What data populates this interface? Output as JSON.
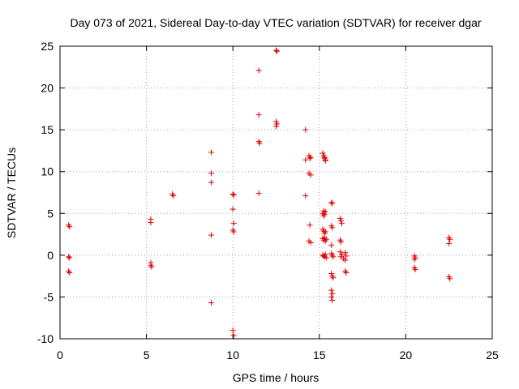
{
  "chart_data": {
    "type": "scatter",
    "title": "Day 073 of 2021, Sidereal Day-to-day VTEC variation (SDTVAR) for receiver dgar",
    "xlabel": "GPS time / hours",
    "ylabel": "SDTVAR / TECUs",
    "xlim": [
      0,
      25
    ],
    "ylim": [
      -10,
      25
    ],
    "xticks": [
      0,
      5,
      10,
      15,
      20,
      25
    ],
    "yticks": [
      -10,
      -5,
      0,
      5,
      10,
      15,
      20,
      25
    ],
    "grid": true,
    "marker": "plus",
    "color": "#e00000",
    "series": [
      {
        "name": "dgar",
        "points": [
          [
            0.5,
            3.6
          ],
          [
            0.55,
            3.4
          ],
          [
            0.5,
            -0.2
          ],
          [
            0.55,
            -0.3
          ],
          [
            0.5,
            -1.9
          ],
          [
            0.55,
            -2.1
          ],
          [
            5.25,
            4.3
          ],
          [
            5.25,
            3.9
          ],
          [
            5.25,
            -0.9
          ],
          [
            5.25,
            -1.2
          ],
          [
            5.3,
            -1.4
          ],
          [
            6.5,
            7.3
          ],
          [
            6.55,
            7.1
          ],
          [
            8.75,
            12.3
          ],
          [
            8.75,
            9.8
          ],
          [
            8.75,
            8.7
          ],
          [
            8.75,
            2.4
          ],
          [
            8.75,
            -5.7
          ],
          [
            10.0,
            7.3
          ],
          [
            10.05,
            7.2
          ],
          [
            10.0,
            5.5
          ],
          [
            10.05,
            3.8
          ],
          [
            10.0,
            3.0
          ],
          [
            10.05,
            2.8
          ],
          [
            10.0,
            -9.0
          ],
          [
            10.05,
            -9.6
          ],
          [
            11.5,
            22.1
          ],
          [
            11.5,
            16.8
          ],
          [
            11.5,
            13.6
          ],
          [
            11.55,
            13.4
          ],
          [
            11.5,
            7.4
          ],
          [
            12.5,
            24.5
          ],
          [
            12.55,
            24.4
          ],
          [
            12.5,
            16.0
          ],
          [
            12.55,
            15.7
          ],
          [
            12.5,
            15.4
          ],
          [
            14.2,
            15.0
          ],
          [
            14.2,
            11.4
          ],
          [
            14.2,
            7.1
          ],
          [
            14.4,
            11.9
          ],
          [
            14.45,
            11.6
          ],
          [
            14.5,
            11.7
          ],
          [
            14.4,
            9.8
          ],
          [
            14.5,
            9.6
          ],
          [
            14.45,
            3.6
          ],
          [
            14.4,
            1.7
          ],
          [
            14.5,
            1.5
          ],
          [
            15.2,
            12.2
          ],
          [
            15.25,
            11.9
          ],
          [
            15.3,
            11.6
          ],
          [
            15.35,
            11.4
          ],
          [
            15.3,
            11.7
          ],
          [
            15.35,
            11.3
          ],
          [
            15.2,
            5.0
          ],
          [
            15.25,
            5.3
          ],
          [
            15.3,
            4.9
          ],
          [
            15.35,
            5.2
          ],
          [
            15.25,
            4.7
          ],
          [
            15.2,
            3.1
          ],
          [
            15.25,
            2.9
          ],
          [
            15.3,
            2.6
          ],
          [
            15.35,
            2.8
          ],
          [
            15.2,
            2.0
          ],
          [
            15.25,
            1.8
          ],
          [
            15.3,
            2.1
          ],
          [
            15.35,
            1.7
          ],
          [
            15.4,
            1.9
          ],
          [
            15.2,
            0.0
          ],
          [
            15.25,
            -0.1
          ],
          [
            15.3,
            -0.2
          ],
          [
            15.35,
            0.1
          ],
          [
            15.4,
            -0.3
          ],
          [
            15.7,
            6.3
          ],
          [
            15.75,
            6.2
          ],
          [
            15.7,
            3.5
          ],
          [
            15.75,
            3.3
          ],
          [
            15.7,
            1.2
          ],
          [
            15.7,
            0.2
          ],
          [
            15.75,
            0.0
          ],
          [
            15.8,
            -0.2
          ],
          [
            15.7,
            -2.2
          ],
          [
            15.75,
            -2.5
          ],
          [
            15.8,
            -2.7
          ],
          [
            15.7,
            -4.2
          ],
          [
            15.75,
            -4.6
          ],
          [
            15.7,
            -5.0
          ],
          [
            15.75,
            -5.4
          ],
          [
            16.2,
            4.4
          ],
          [
            16.25,
            4.1
          ],
          [
            16.3,
            3.8
          ],
          [
            16.2,
            1.8
          ],
          [
            16.25,
            1.6
          ],
          [
            16.2,
            0.4
          ],
          [
            16.3,
            0.1
          ],
          [
            16.25,
            -0.2
          ],
          [
            16.4,
            -0.4
          ],
          [
            16.5,
            0.3
          ],
          [
            16.55,
            -0.1
          ],
          [
            16.5,
            -0.6
          ],
          [
            16.5,
            -1.9
          ],
          [
            16.55,
            -2.1
          ],
          [
            20.5,
            -0.1
          ],
          [
            20.55,
            -0.3
          ],
          [
            20.5,
            -0.5
          ],
          [
            20.5,
            -1.5
          ],
          [
            20.55,
            -1.7
          ],
          [
            22.5,
            2.1
          ],
          [
            22.55,
            1.9
          ],
          [
            22.5,
            1.4
          ],
          [
            22.5,
            -2.6
          ],
          [
            22.55,
            -2.8
          ]
        ]
      }
    ]
  }
}
